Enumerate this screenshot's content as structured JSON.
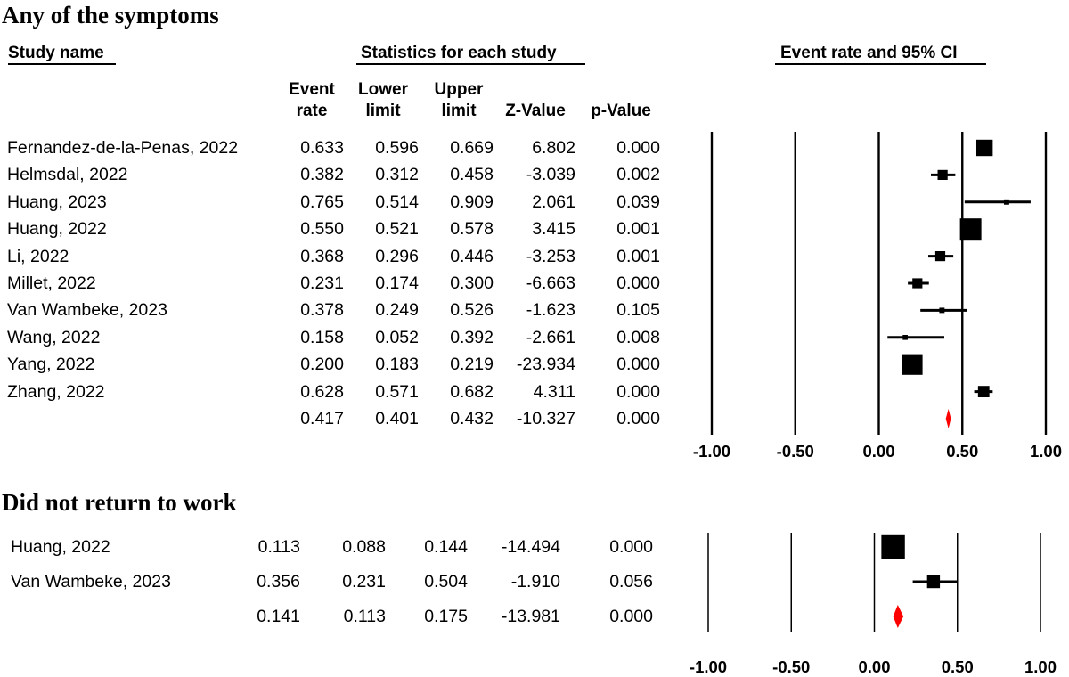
{
  "chart_data": [
    {
      "type": "forest",
      "title": "Any of the symptoms",
      "headers": {
        "study_name": "Study name",
        "statistics": "Statistics for each study",
        "plot": "Event rate and 95% CI",
        "columns": [
          [
            "Event",
            "rate"
          ],
          [
            "Lower",
            "limit"
          ],
          [
            "Upper",
            "limit"
          ],
          [
            "",
            "Z-Value"
          ],
          [
            "",
            "p-Value"
          ]
        ]
      },
      "xlim": [
        -1.0,
        1.0
      ],
      "x_ticks": [
        "-1.00",
        "-0.50",
        "0.00",
        "0.50",
        "1.00"
      ],
      "x_tick_values": [
        -1.0,
        -0.5,
        0.0,
        0.5,
        1.0
      ],
      "rows": [
        {
          "study": "Fernandez-de-la-Penas, 2022",
          "event_rate": "0.633",
          "lower": "0.596",
          "upper": "0.669",
          "z": "6.802",
          "p": "0.000",
          "weight": 0.9
        },
        {
          "study": "Helmsdal, 2022",
          "event_rate": "0.382",
          "lower": "0.312",
          "upper": "0.458",
          "z": "-3.039",
          "p": "0.002",
          "weight": 0.45
        },
        {
          "study": "Huang, 2023",
          "event_rate": "0.765",
          "lower": "0.514",
          "upper": "0.909",
          "z": "2.061",
          "p": "0.039",
          "weight": 0.12
        },
        {
          "study": "Huang, 2022",
          "event_rate": "0.550",
          "lower": "0.521",
          "upper": "0.578",
          "z": "3.415",
          "p": "0.001",
          "weight": 1.25
        },
        {
          "study": "Li, 2022",
          "event_rate": "0.368",
          "lower": "0.296",
          "upper": "0.446",
          "z": "-3.253",
          "p": "0.001",
          "weight": 0.45
        },
        {
          "study": "Millet, 2022",
          "event_rate": "0.231",
          "lower": "0.174",
          "upper": "0.300",
          "z": "-6.663",
          "p": "0.000",
          "weight": 0.45
        },
        {
          "study": "Van Wambeke, 2023",
          "event_rate": "0.378",
          "lower": "0.249",
          "upper": "0.526",
          "z": "-1.623",
          "p": "0.105",
          "weight": 0.12
        },
        {
          "study": "Wang, 2022",
          "event_rate": "0.158",
          "lower": "0.052",
          "upper": "0.392",
          "z": "-2.661",
          "p": "0.008",
          "weight": 0.1
        },
        {
          "study": "Yang, 2022",
          "event_rate": "0.200",
          "lower": "0.183",
          "upper": "0.219",
          "z": "-23.934",
          "p": "0.000",
          "weight": 1.2
        },
        {
          "study": "Zhang, 2022",
          "event_rate": "0.628",
          "lower": "0.571",
          "upper": "0.682",
          "z": "4.311",
          "p": "0.000",
          "weight": 0.55
        }
      ],
      "pooled": {
        "study": "",
        "event_rate": "0.417",
        "lower": "0.401",
        "upper": "0.432",
        "z": "-10.327",
        "p": "0.000"
      },
      "pooled_color": "#ff0000"
    },
    {
      "type": "forest",
      "title": "Did not return to work",
      "xlim": [
        -1.0,
        1.0
      ],
      "x_ticks": [
        "-1.00",
        "-0.50",
        "0.00",
        "0.50",
        "1.00"
      ],
      "x_tick_values": [
        -1.0,
        -0.5,
        0.0,
        0.5,
        1.0
      ],
      "rows": [
        {
          "study": "Huang, 2022",
          "event_rate": "0.113",
          "lower": "0.088",
          "upper": "0.144",
          "z": "-14.494",
          "p": "0.000",
          "weight": 1.4
        },
        {
          "study": "Van Wambeke, 2023",
          "event_rate": "0.356",
          "lower": "0.231",
          "upper": "0.504",
          "z": "-1.910",
          "p": "0.056",
          "weight": 0.65
        }
      ],
      "pooled": {
        "study": "",
        "event_rate": "0.141",
        "lower": "0.113",
        "upper": "0.175",
        "z": "-13.981",
        "p": "0.000"
      },
      "pooled_color": "#ff0000"
    }
  ]
}
